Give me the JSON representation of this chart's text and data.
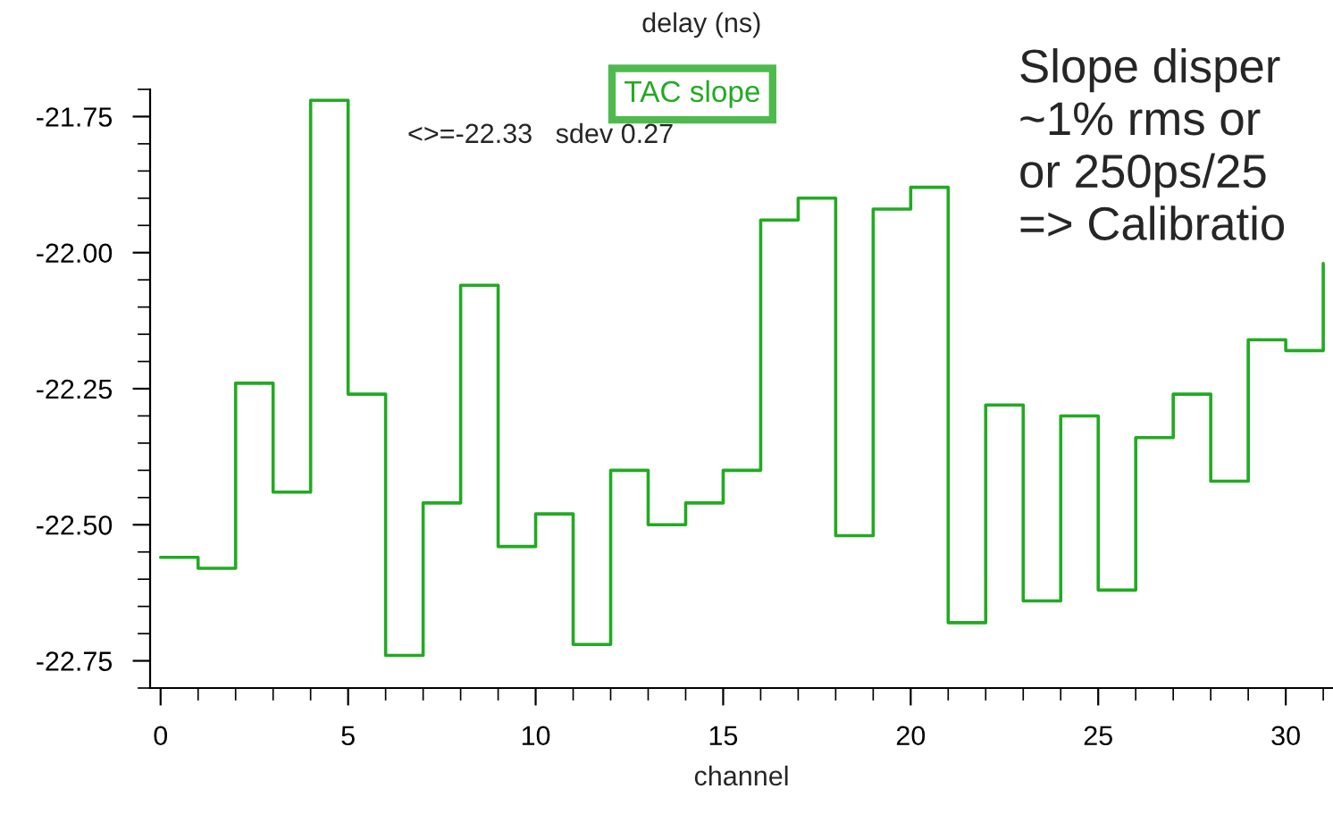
{
  "chart_data": {
    "type": "step",
    "title": "delay (ns)",
    "xlabel": "channel",
    "x": [
      0,
      1,
      2,
      3,
      4,
      5,
      6,
      7,
      8,
      9,
      10,
      11,
      12,
      13,
      14,
      15,
      16,
      17,
      18,
      19,
      20,
      21,
      22,
      23,
      24,
      25,
      26,
      27,
      28,
      29,
      30,
      31
    ],
    "series": [
      {
        "name": "TAC slope",
        "color": "#22aa22",
        "values": [
          -22.56,
          -22.58,
          -22.24,
          -22.44,
          -21.72,
          -22.26,
          -22.74,
          -22.46,
          -22.06,
          -22.54,
          -22.48,
          -22.72,
          -22.4,
          -22.5,
          -22.46,
          -22.4,
          -21.94,
          -21.9,
          -22.52,
          -21.92,
          -21.88,
          -22.68,
          -22.28,
          -22.64,
          -22.3,
          -22.62,
          -22.34,
          -22.26,
          -22.42,
          -22.16,
          -22.18,
          -22.02
        ]
      }
    ],
    "xlim": [
      -0.28,
      31.26
    ],
    "ylim": [
      -22.8,
      -21.7
    ],
    "xticks": [
      0,
      5,
      10,
      15,
      20,
      25,
      30
    ],
    "yticks": [
      {
        "value": -21.75,
        "label": "-21.75"
      },
      {
        "value": -22.0,
        "label": "-22.00"
      },
      {
        "value": -22.25,
        "label": "-22.25"
      },
      {
        "value": -22.5,
        "label": "-22.50"
      },
      {
        "value": -22.75,
        "label": "-22.75"
      }
    ],
    "grid": false,
    "legend": "top",
    "annotations": [
      "<>=-22.33   sdev 0.27",
      "Slope disper\n~1% rms or\nor 250ps/25\n=> Calibratio"
    ]
  }
}
